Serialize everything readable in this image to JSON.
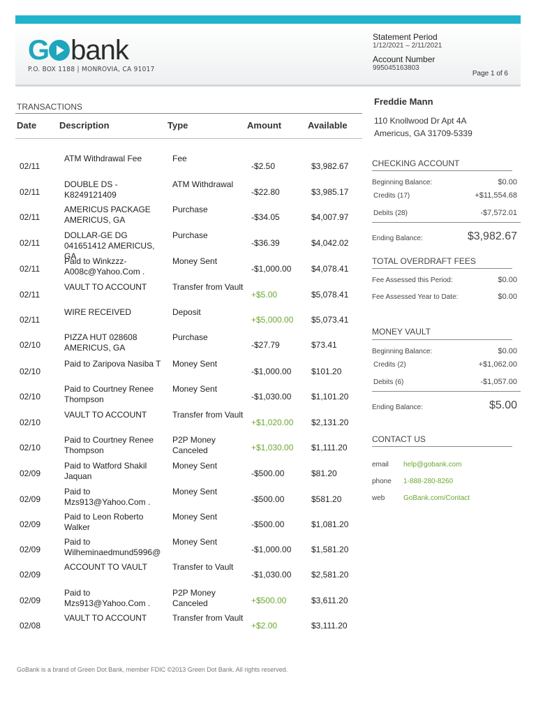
{
  "header": {
    "logo_go": "GO",
    "logo_bank": "bank",
    "logo_address": "P.O. BOX 1188  |  MONROVIA, CA 91017",
    "statement_period_label": "Statement Period",
    "statement_period": "1/12/2021 – 2/11/2021",
    "account_number_label": "Account Number",
    "account_number": "995045163803",
    "page": "Page 1 of 6"
  },
  "transactions": {
    "title": "TRANSACTIONS",
    "columns": [
      "Date",
      "Description",
      "Type",
      "Amount",
      "Available"
    ],
    "rows": [
      {
        "date": "02/11",
        "desc": "ATM Withdrawal Fee",
        "type": "Fee",
        "amount": "-$2.50",
        "available": "$3,982.67",
        "credit": false
      },
      {
        "date": "02/11",
        "desc": "DOUBLE DS  - K8249121409",
        "type": "ATM Withdrawal",
        "amount": "-$22.80",
        "available": "$3,985.17",
        "credit": false
      },
      {
        "date": "02/11",
        "desc": "AMERICUS PACKAGE AMERICUS, GA",
        "type": "Purchase",
        "amount": "-$34.05",
        "available": "$4,007.97",
        "credit": false
      },
      {
        "date": "02/11",
        "desc": "DOLLAR-GE DG 041651412 AMERICUS, GA",
        "type": "Purchase",
        "amount": "-$36.39",
        "available": "$4,042.02",
        "credit": false
      },
      {
        "date": "02/11",
        "desc": "Paid to Winkzzz-A008c@Yahoo.Com .",
        "type": "Money Sent",
        "amount": "-$1,000.00",
        "available": "$4,078.41",
        "credit": false
      },
      {
        "date": "02/11",
        "desc": "VAULT TO ACCOUNT",
        "type": "Transfer from Vault",
        "amount": "+$5.00",
        "available": "$5,078.41",
        "credit": true
      },
      {
        "date": "02/11",
        "desc": "WIRE RECEIVED",
        "type": "Deposit",
        "amount": "+$5,000.00",
        "available": "$5,073.41",
        "credit": true
      },
      {
        "date": "02/10",
        "desc": "PIZZA HUT 028608 AMERICUS, GA",
        "type": "Purchase",
        "amount": "-$27.79",
        "available": "$73.41",
        "credit": false
      },
      {
        "date": "02/10",
        "desc": "Paid to Zaripova Nasiba T",
        "type": "Money Sent",
        "amount": "-$1,000.00",
        "available": "$101.20",
        "credit": false
      },
      {
        "date": "02/10",
        "desc": "Paid to Courtney Renee Thompson",
        "type": "Money Sent",
        "amount": "-$1,030.00",
        "available": "$1,101.20",
        "credit": false
      },
      {
        "date": "02/10",
        "desc": "VAULT TO ACCOUNT",
        "type": "Transfer from Vault",
        "amount": "+$1,020.00",
        "available": "$2,131.20",
        "credit": true
      },
      {
        "date": "02/10",
        "desc": "Paid to Courtney Renee Thompson",
        "type": "P2P Money Canceled",
        "amount": "+$1,030.00",
        "available": "$1,111.20",
        "credit": true
      },
      {
        "date": "02/09",
        "desc": "Paid to Watford Shakil Jaquan",
        "type": "Money Sent",
        "amount": "-$500.00",
        "available": "$81.20",
        "credit": false
      },
      {
        "date": "02/09",
        "desc": "Paid to Mzs913@Yahoo.Com .",
        "type": "Money Sent",
        "amount": "-$500.00",
        "available": "$581.20",
        "credit": false
      },
      {
        "date": "02/09",
        "desc": "Paid to Leon Roberto Walker",
        "type": "Money Sent",
        "amount": "-$500.00",
        "available": "$1,081.20",
        "credit": false
      },
      {
        "date": "02/09",
        "desc": "Paid to Wilheminaedmund5996@",
        "type": "Money Sent",
        "amount": "-$1,000.00",
        "available": "$1,581.20",
        "credit": false
      },
      {
        "date": "02/09",
        "desc": "ACCOUNT TO VAULT",
        "type": "Transfer to Vault",
        "amount": "-$1,030.00",
        "available": "$2,581.20",
        "credit": false
      },
      {
        "date": "02/09",
        "desc": "Paid to Mzs913@Yahoo.Com .",
        "type": "P2P Money Canceled",
        "amount": "+$500.00",
        "available": "$3,611.20",
        "credit": true
      },
      {
        "date": "02/08",
        "desc": "VAULT TO ACCOUNT",
        "type": "Transfer from Vault",
        "amount": "+$2.00",
        "available": "$3,111.20",
        "credit": true
      }
    ]
  },
  "customer": {
    "name": "Freddie Mann",
    "address_line1": "110 Knollwood Dr Apt 4A",
    "address_line2": "Americus, GA 31709-5339"
  },
  "checking": {
    "title": "CHECKING ACCOUNT",
    "beginning_label": "Beginning Balance:",
    "beginning": "$0.00",
    "credits_label": "Credits (17)",
    "credits": "+$11,554.68",
    "debits_label": "Debits (28)",
    "debits": "-$7,572.01",
    "ending_label": "Ending Balance:",
    "ending": "$3,982.67"
  },
  "overdraft": {
    "title": "TOTAL OVERDRAFT FEES",
    "period_label": "Fee Assessed this Period:",
    "period": "$0.00",
    "ytd_label": "Fee Assessed Year to Date:",
    "ytd": "$0.00"
  },
  "vault": {
    "title": "MONEY VAULT",
    "beginning_label": "Beginning Balance:",
    "beginning": "$0.00",
    "credits_label": "Credits (2)",
    "credits": "+$1,062.00",
    "debits_label": "Debits (6)",
    "debits": "-$1,057.00",
    "ending_label": "Ending Balance:",
    "ending": "$5.00"
  },
  "contact": {
    "title": "CONTACT US",
    "email_label": "email",
    "email": "help@gobank.com",
    "phone_label": "phone",
    "phone": "1-888-280-8260",
    "web_label": "web",
    "web": "GoBank.com/Contact"
  },
  "footer": "GoBank is a brand of Green Dot Bank, member FDIC ©2013 Green Dot Bank. All rights reserved.",
  "colors": {
    "brand": "#1fa6bd",
    "credit": "#6aa82f"
  }
}
